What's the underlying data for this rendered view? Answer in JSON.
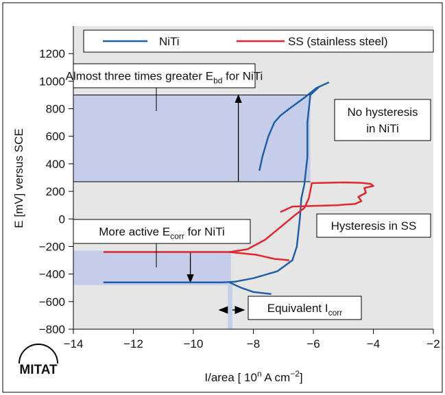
{
  "chart_data": {
    "type": "line",
    "xlabel": [
      "I/area [ 10",
      "n",
      " A cm",
      "−2",
      "]"
    ],
    "ylabel": "E [mV] versus SCE",
    "logo": "MITAT",
    "xlim": [
      -14,
      -2
    ],
    "ylim": [
      -800,
      1400
    ],
    "xticks": [
      {
        "value": -14,
        "label": "−14"
      },
      {
        "value": -12,
        "label": "−12"
      },
      {
        "value": -10,
        "label": "−10"
      },
      {
        "value": -8,
        "label": "−8"
      },
      {
        "value": -6,
        "label": "−6"
      },
      {
        "value": -4,
        "label": "−4"
      },
      {
        "value": -2,
        "label": "−2"
      }
    ],
    "yticks": [
      {
        "value": -800,
        "label": "−800"
      },
      {
        "value": -600,
        "label": "−600"
      },
      {
        "value": -400,
        "label": "−400"
      },
      {
        "value": -200,
        "label": "−200"
      },
      0,
      200,
      400,
      600,
      800,
      1000,
      1200
    ],
    "series": [
      {
        "name": "NiTi",
        "color": "#1f5fa8",
        "x": [
          -13,
          -9,
          -8.6,
          -8,
          -7.2,
          -6.7,
          -6.55,
          -6.45,
          -6.4,
          -6.3,
          -6.2,
          -6.2,
          -6.1,
          -5.8,
          -5.5,
          -5.9,
          -6.3,
          -6.8,
          -7.1,
          -7.3,
          -7.5,
          -7.7,
          -7.8,
          null,
          -8.8,
          -8.4,
          -8,
          -7.4
        ],
        "values": [
          -460,
          -460,
          -455,
          -430,
          -380,
          -300,
          -200,
          0,
          150,
          250,
          450,
          700,
          900,
          960,
          990,
          950,
          880,
          800,
          750,
          700,
          600,
          450,
          350,
          null,
          -460,
          -500,
          -530,
          -545
        ]
      },
      {
        "name": "SS (stainless steel)",
        "color": "#e3262d",
        "x": [
          -13,
          -8.8,
          -8.2,
          -7.6,
          -7.1,
          -6.6,
          -6.3,
          -6.15,
          -6.05,
          -5,
          -4.4,
          -4.1,
          -4,
          -4.3,
          -4.25,
          -4.5,
          -4.4,
          -4.6,
          -5.2,
          -6,
          -6.7,
          -7.1,
          null,
          -8.8,
          -7.9,
          -7.3,
          -6.8
        ],
        "values": [
          -240,
          -240,
          -220,
          -150,
          -60,
          30,
          80,
          150,
          260,
          265,
          262,
          255,
          240,
          225,
          190,
          160,
          130,
          110,
          100,
          95,
          90,
          50,
          null,
          -240,
          -260,
          -290,
          -300
        ]
      }
    ],
    "bands": [
      {
        "x": [
          -14,
          -6.1
        ],
        "y": [
          270,
          900
        ]
      },
      {
        "x": [
          -14,
          -8.75
        ],
        "y": [
          -480,
          -230
        ]
      },
      {
        "x": [
          -8.85,
          -8.7
        ],
        "y": [
          -800,
          -480
        ]
      }
    ],
    "arrows": [
      {
        "x": -8.5,
        "y": [
          270,
          900
        ]
      },
      {
        "x": -10.1,
        "y": [
          -240,
          -460
        ]
      }
    ],
    "annotations": [
      {
        "lines": [
          [
            "Almost three times greater E",
            "bd",
            " for NiTi"
          ]
        ]
      },
      {
        "lines": [
          [
            "No hysteresis"
          ],
          [
            "in NiTi"
          ]
        ]
      },
      {
        "lines": [
          [
            "Hysteresis in SS"
          ]
        ]
      },
      {
        "lines": [
          [
            "More active E",
            "corr",
            " for NiTi"
          ]
        ]
      },
      {
        "lines": [
          [
            "Equivalent I",
            "corr"
          ]
        ]
      }
    ]
  }
}
